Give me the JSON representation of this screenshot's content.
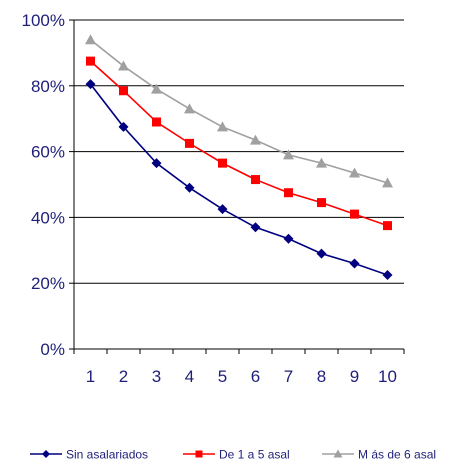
{
  "chart_data": {
    "type": "line",
    "categories": [
      "1",
      "2",
      "3",
      "4",
      "5",
      "6",
      "7",
      "8",
      "9",
      "10"
    ],
    "series": [
      {
        "name": "Sin asalariados",
        "color": "#000080",
        "marker": "diamond",
        "values": [
          80.5,
          67.5,
          56.5,
          49,
          42.5,
          37,
          33.5,
          29,
          26,
          22.5
        ]
      },
      {
        "name": "De 1 a 5 asal",
        "color": "#ff0000",
        "marker": "square",
        "values": [
          87.5,
          78.5,
          69,
          62.5,
          56.5,
          51.5,
          47.5,
          44.5,
          41,
          37.5
        ]
      },
      {
        "name": "M ás de 6 asal",
        "color": "#a0a0a0",
        "marker": "triangle",
        "values": [
          94,
          86,
          79,
          73,
          67.5,
          63.5,
          59,
          56.5,
          53.5,
          50.5
        ]
      }
    ],
    "y_ticks": [
      {
        "value": 0,
        "label": "0%"
      },
      {
        "value": 20,
        "label": "20%"
      },
      {
        "value": 40,
        "label": "40%"
      },
      {
        "value": 60,
        "label": "60%"
      },
      {
        "value": 80,
        "label": "80%"
      },
      {
        "value": 100,
        "label": "100%"
      }
    ],
    "ylim": [
      0,
      100
    ],
    "grid": "horizontal",
    "legend_position": "bottom",
    "axis_color": "#000000",
    "grid_color": "#000000"
  }
}
